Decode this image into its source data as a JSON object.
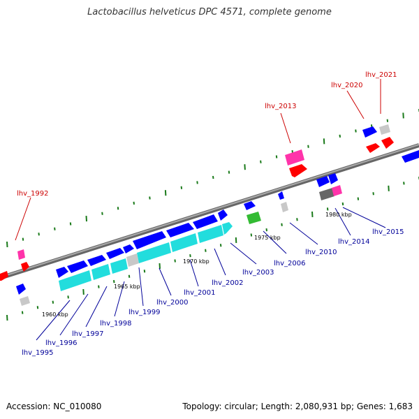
{
  "title": "Lactobacillus helveticus DPC 4571, complete genome",
  "footer": {
    "accession": "Accession: NC_010080",
    "topology": "Topology: circular; Length: 2,080,931 bp; Genes: 1,683"
  },
  "colors": {
    "backbone": "#888888",
    "forward_cds": "#0000ff",
    "reverse_cds": "#ff0000",
    "pseudo": "#ff33aa",
    "gray": "#c8c8c8",
    "dark_gray": "#666666",
    "cyan": "#22dddd",
    "green": "#33bb33",
    "dots": "#1a7a1a"
  },
  "kbp_ticks": [
    "1960 kbp",
    "1965 kbp",
    "1970 kbp",
    "1975 kbp",
    "1980 kbp"
  ],
  "red_labels": [
    "lhv_1992",
    "lhv_2013",
    "lhv_2020",
    "lhv_2021"
  ],
  "blue_labels": [
    "lhv_1995",
    "lhv_1996",
    "lhv_1997",
    "lhv_1998",
    "lhv_1999",
    "lhv_2000",
    "lhv_2001",
    "lhv_2002",
    "lhv_2003",
    "lhv_2006",
    "lhv_2010",
    "lhv_2014",
    "lhv_2015"
  ]
}
